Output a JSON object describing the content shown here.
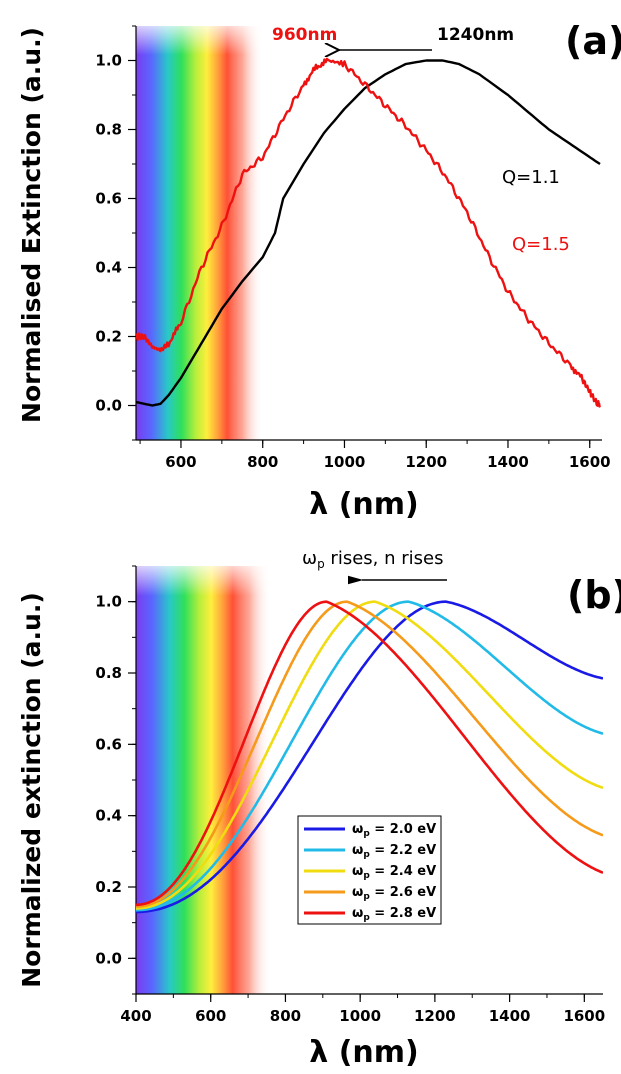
{
  "chart_data": [
    {
      "panel_label": "(a)",
      "type": "line",
      "xlabel": "λ (nm)",
      "ylabel": "Normalised Extinction (a.u.)",
      "xlim": [
        490,
        1630
      ],
      "ylim": [
        -0.1,
        1.1
      ],
      "xticks": [
        600,
        800,
        1000,
        1200,
        1400,
        1600
      ],
      "yticks": [
        0.0,
        0.2,
        0.4,
        0.6,
        0.8,
        1.0
      ],
      "ytick_labels": [
        "0.0",
        "0.2",
        "0.4",
        "0.6",
        "0.8",
        "1.0"
      ],
      "visible_spectrum_band": [
        490,
        800
      ],
      "series": [
        {
          "name": "Q=1.1",
          "color": "#000000",
          "x": [
            490,
            510,
            530,
            550,
            570,
            600,
            650,
            700,
            750,
            800,
            830,
            850,
            900,
            950,
            1000,
            1050,
            1100,
            1150,
            1200,
            1240,
            1280,
            1330,
            1400,
            1450,
            1500,
            1550,
            1600,
            1625
          ],
          "y": [
            0.01,
            0.005,
            0.0,
            0.005,
            0.03,
            0.08,
            0.18,
            0.28,
            0.36,
            0.43,
            0.5,
            0.6,
            0.7,
            0.79,
            0.86,
            0.92,
            0.96,
            0.99,
            1.0,
            1.0,
            0.99,
            0.96,
            0.9,
            0.85,
            0.8,
            0.76,
            0.72,
            0.7
          ]
        },
        {
          "name": "Q=1.5",
          "color": "#ee1111",
          "x": [
            490,
            510,
            530,
            550,
            570,
            600,
            650,
            700,
            750,
            800,
            850,
            900,
            930,
            960,
            1000,
            1050,
            1100,
            1150,
            1200,
            1250,
            1300,
            1350,
            1400,
            1450,
            1500,
            1550,
            1580,
            1600,
            1615,
            1625
          ],
          "y": [
            0.2,
            0.2,
            0.17,
            0.16,
            0.18,
            0.24,
            0.4,
            0.52,
            0.67,
            0.72,
            0.83,
            0.93,
            0.98,
            1.0,
            0.99,
            0.93,
            0.87,
            0.81,
            0.74,
            0.66,
            0.56,
            0.44,
            0.33,
            0.25,
            0.18,
            0.12,
            0.08,
            0.04,
            0.01,
            0.0
          ]
        }
      ],
      "annotations": {
        "peak_red": "960nm",
        "peak_red_color": "#ee1111",
        "peak_black": "1240nm",
        "label_q11": "Q=1.1",
        "label_q15": "Q=1.5"
      }
    },
    {
      "panel_label": "(b)",
      "type": "line",
      "xlabel": "λ (nm)",
      "ylabel": "Normalized extinction (a.u.)",
      "xlim": [
        400,
        1650
      ],
      "ylim": [
        -0.1,
        1.1
      ],
      "xticks": [
        400,
        600,
        800,
        1000,
        1200,
        1400,
        1600
      ],
      "yticks": [
        0.0,
        0.2,
        0.4,
        0.6,
        0.8,
        1.0
      ],
      "ytick_labels": [
        "0.0",
        "0.2",
        "0.4",
        "0.6",
        "0.8",
        "1.0"
      ],
      "visible_spectrum_band": [
        400,
        760
      ],
      "annotation_omega": "ω",
      "annotation_sub": "p",
      "annotation_text": " rises, n rises",
      "legend_placement": "lower-center",
      "series": [
        {
          "name_prefix": "ω",
          "name_sub": "p",
          "name_value": " = 2.0 eV",
          "color": "#1a1ae6",
          "peak": 1230,
          "tail_right": 0.785,
          "left_value": 0.13
        },
        {
          "name_prefix": "ω",
          "name_sub": "p",
          "name_value": " = 2.2 eV",
          "color": "#22bbe8",
          "peak": 1130,
          "tail_right": 0.63,
          "left_value": 0.135
        },
        {
          "name_prefix": "ω",
          "name_sub": "p",
          "name_value": " = 2.4 eV",
          "color": "#f0dc10",
          "peak": 1040,
          "tail_right": 0.478,
          "left_value": 0.14
        },
        {
          "name_prefix": "ω",
          "name_sub": "p",
          "name_value": " = 2.6 eV",
          "color": "#f59a1a",
          "peak": 965,
          "tail_right": 0.345,
          "left_value": 0.145
        },
        {
          "name_prefix": "ω",
          "name_sub": "p",
          "name_value": " = 2.8 eV",
          "color": "#ee1111",
          "peak": 910,
          "tail_right": 0.24,
          "left_value": 0.15
        }
      ]
    }
  ]
}
